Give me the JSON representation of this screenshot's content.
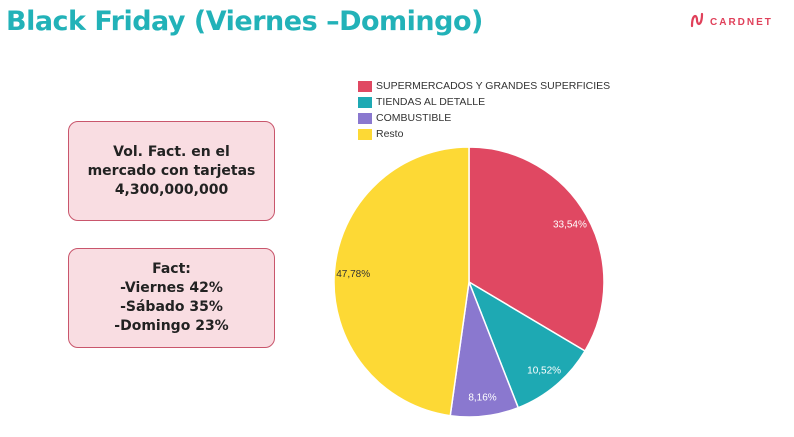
{
  "header": {
    "title": "Black Friday (Viernes –Domingo)",
    "brand": "CARDNET",
    "brand_color": "#e0405a",
    "title_color": "#22b2b8",
    "logo_icon": "cardnet-logo-icon"
  },
  "info_boxes": {
    "volume": {
      "line1": "Vol. Fact. en el",
      "line2": "mercado con tarjetas",
      "line3": "4,300,000,000"
    },
    "fact": {
      "line1": "Fact:",
      "line2": "-Viernes 42%",
      "line3": "-Sábado 35%",
      "line4": "-Domingo 23%"
    }
  },
  "chart_data": {
    "type": "pie",
    "title": "",
    "legend_position": "top",
    "series": [
      {
        "name": "SUPERMERCADOS Y GRANDES SUPERFICIES",
        "value": 33.54,
        "label": "33,54%",
        "color": "#e04862",
        "label_color": "#ffffff"
      },
      {
        "name": "TIENDAS AL DETALLE",
        "value": 10.52,
        "label": "10,52%",
        "color": "#1ea9b3",
        "label_color": "#ffffff"
      },
      {
        "name": "COMBUSTIBLE",
        "value": 8.16,
        "label": "8,16%",
        "color": "#8a78cf",
        "label_color": "#ffffff"
      },
      {
        "name": "Resto",
        "value": 47.78,
        "label": "47,78%",
        "color": "#fdd935",
        "label_color": "#333333"
      }
    ]
  }
}
